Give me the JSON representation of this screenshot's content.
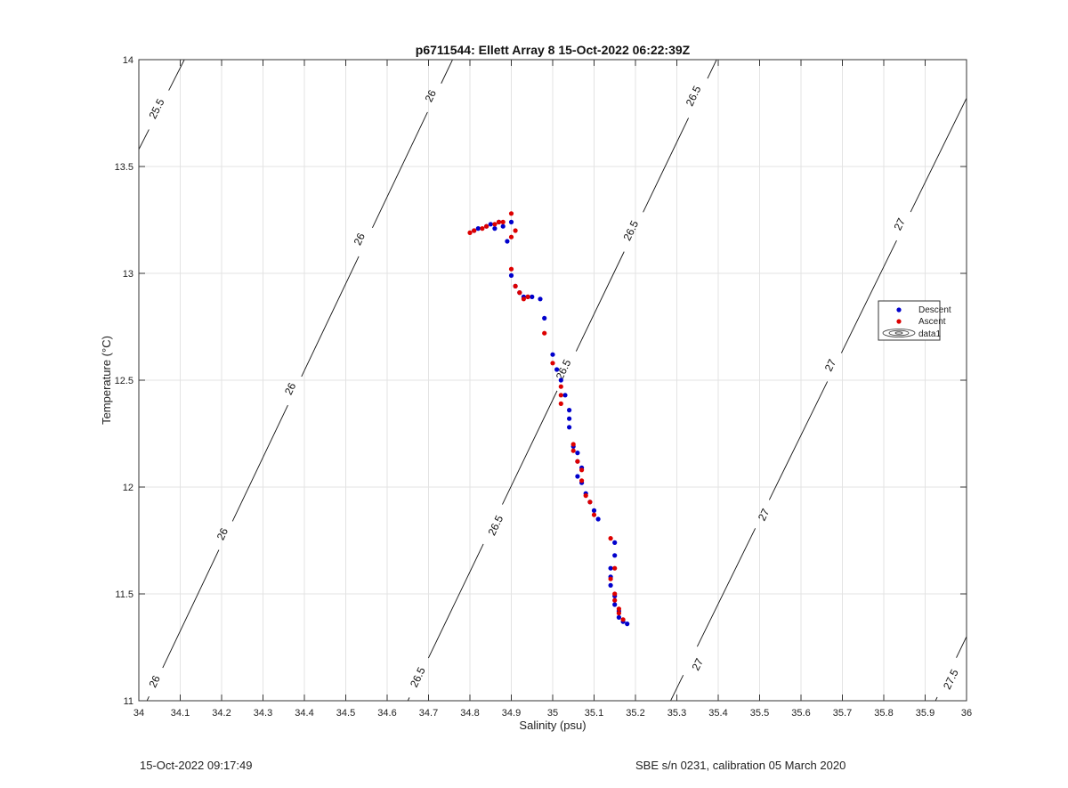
{
  "chart_data": {
    "type": "scatter",
    "title": "p6711544: Ellett Array 8 15-Oct-2022 06:22:39Z",
    "xlabel": "Salinity (psu)",
    "ylabel": "Temperature (°C)",
    "xlim": [
      34,
      36
    ],
    "ylim": [
      11,
      14
    ],
    "xticks": [
      "34",
      "34.1",
      "34.2",
      "34.3",
      "34.4",
      "34.5",
      "34.6",
      "34.7",
      "34.8",
      "34.9",
      "35",
      "35.1",
      "35.2",
      "35.3",
      "35.4",
      "35.5",
      "35.6",
      "35.7",
      "35.8",
      "35.9",
      "36"
    ],
    "yticks": [
      "11",
      "11.5",
      "12",
      "12.5",
      "13",
      "13.5",
      "14"
    ],
    "grid": true,
    "legend_position": "right",
    "legend": [
      "Descent",
      "Ascent",
      "data1"
    ],
    "series": [
      {
        "name": "Descent",
        "color": "#0000cc",
        "points": [
          [
            34.81,
            13.2
          ],
          [
            34.82,
            13.21
          ],
          [
            34.84,
            13.22
          ],
          [
            34.85,
            13.23
          ],
          [
            34.87,
            13.24
          ],
          [
            34.86,
            13.21
          ],
          [
            34.88,
            13.22
          ],
          [
            34.9,
            13.24
          ],
          [
            34.89,
            13.15
          ],
          [
            34.9,
            12.99
          ],
          [
            34.91,
            12.94
          ],
          [
            34.92,
            12.91
          ],
          [
            34.93,
            12.89
          ],
          [
            34.94,
            12.89
          ],
          [
            34.95,
            12.89
          ],
          [
            34.97,
            12.88
          ],
          [
            34.98,
            12.79
          ],
          [
            35.0,
            12.62
          ],
          [
            35.01,
            12.55
          ],
          [
            35.02,
            12.5
          ],
          [
            35.03,
            12.43
          ],
          [
            35.04,
            12.36
          ],
          [
            35.04,
            12.32
          ],
          [
            35.04,
            12.28
          ],
          [
            35.05,
            12.19
          ],
          [
            35.06,
            12.16
          ],
          [
            35.06,
            12.12
          ],
          [
            35.07,
            12.09
          ],
          [
            35.06,
            12.05
          ],
          [
            35.07,
            12.02
          ],
          [
            35.08,
            11.97
          ],
          [
            35.09,
            11.93
          ],
          [
            35.1,
            11.89
          ],
          [
            35.11,
            11.85
          ],
          [
            35.15,
            11.74
          ],
          [
            35.15,
            11.68
          ],
          [
            35.14,
            11.62
          ],
          [
            35.14,
            11.58
          ],
          [
            35.14,
            11.54
          ],
          [
            35.15,
            11.49
          ],
          [
            35.15,
            11.45
          ],
          [
            35.16,
            11.42
          ],
          [
            35.16,
            11.39
          ],
          [
            35.17,
            11.37
          ],
          [
            35.18,
            11.36
          ]
        ]
      },
      {
        "name": "Ascent",
        "color": "#dd0000",
        "points": [
          [
            34.8,
            13.19
          ],
          [
            34.81,
            13.2
          ],
          [
            34.83,
            13.21
          ],
          [
            34.84,
            13.22
          ],
          [
            34.86,
            13.23
          ],
          [
            34.87,
            13.24
          ],
          [
            34.88,
            13.24
          ],
          [
            34.9,
            13.28
          ],
          [
            34.91,
            13.2
          ],
          [
            34.9,
            13.17
          ],
          [
            34.9,
            13.02
          ],
          [
            34.91,
            12.94
          ],
          [
            34.92,
            12.91
          ],
          [
            34.93,
            12.88
          ],
          [
            34.94,
            12.89
          ],
          [
            34.98,
            12.72
          ],
          [
            35.0,
            12.58
          ],
          [
            35.02,
            12.47
          ],
          [
            35.02,
            12.43
          ],
          [
            35.02,
            12.39
          ],
          [
            35.05,
            12.2
          ],
          [
            35.05,
            12.17
          ],
          [
            35.06,
            12.12
          ],
          [
            35.07,
            12.08
          ],
          [
            35.07,
            12.03
          ],
          [
            35.08,
            11.96
          ],
          [
            35.09,
            11.93
          ],
          [
            35.1,
            11.87
          ],
          [
            35.14,
            11.76
          ],
          [
            35.15,
            11.62
          ],
          [
            35.14,
            11.57
          ],
          [
            35.15,
            11.5
          ],
          [
            35.15,
            11.47
          ],
          [
            35.16,
            11.43
          ],
          [
            35.16,
            11.41
          ],
          [
            35.17,
            11.38
          ]
        ]
      }
    ],
    "density_contours": [
      {
        "label": "25.5",
        "points": [
          [
            34.0,
            13.58
          ],
          [
            34.11,
            14.0
          ]
        ],
        "labels_at": [
          [
            34.043,
            13.77
          ]
        ]
      },
      {
        "label": "26",
        "points": [
          [
            34.0,
            10.92
          ],
          [
            34.758,
            14.0
          ]
        ],
        "labels_at": [
          [
            34.038,
            11.09
          ],
          [
            34.202,
            11.78
          ],
          [
            34.366,
            12.46
          ],
          [
            34.533,
            13.16
          ],
          [
            34.705,
            13.83
          ]
        ]
      },
      {
        "label": "26.5",
        "points": [
          [
            34.65,
            11.0
          ],
          [
            35.396,
            14.0
          ]
        ],
        "labels_at": [
          [
            34.674,
            11.11
          ],
          [
            34.862,
            11.82
          ],
          [
            35.026,
            12.55
          ],
          [
            35.189,
            13.2
          ],
          [
            35.34,
            13.83
          ]
        ]
      },
      {
        "label": "27",
        "points": [
          [
            35.285,
            11.0
          ],
          [
            36.0,
            13.82
          ]
        ],
        "labels_at": [
          [
            35.35,
            11.17
          ],
          [
            35.51,
            11.87
          ],
          [
            35.671,
            12.57
          ],
          [
            35.838,
            13.23
          ]
        ]
      },
      {
        "label": "27.5",
        "points": [
          [
            35.925,
            11.0
          ],
          [
            36.0,
            11.3
          ]
        ],
        "labels_at": [
          [
            35.962,
            11.1
          ]
        ]
      }
    ]
  },
  "footer": {
    "left": "15-Oct-2022 09:17:49",
    "right": "SBE s/n 0231, calibration 05 March 2020"
  }
}
